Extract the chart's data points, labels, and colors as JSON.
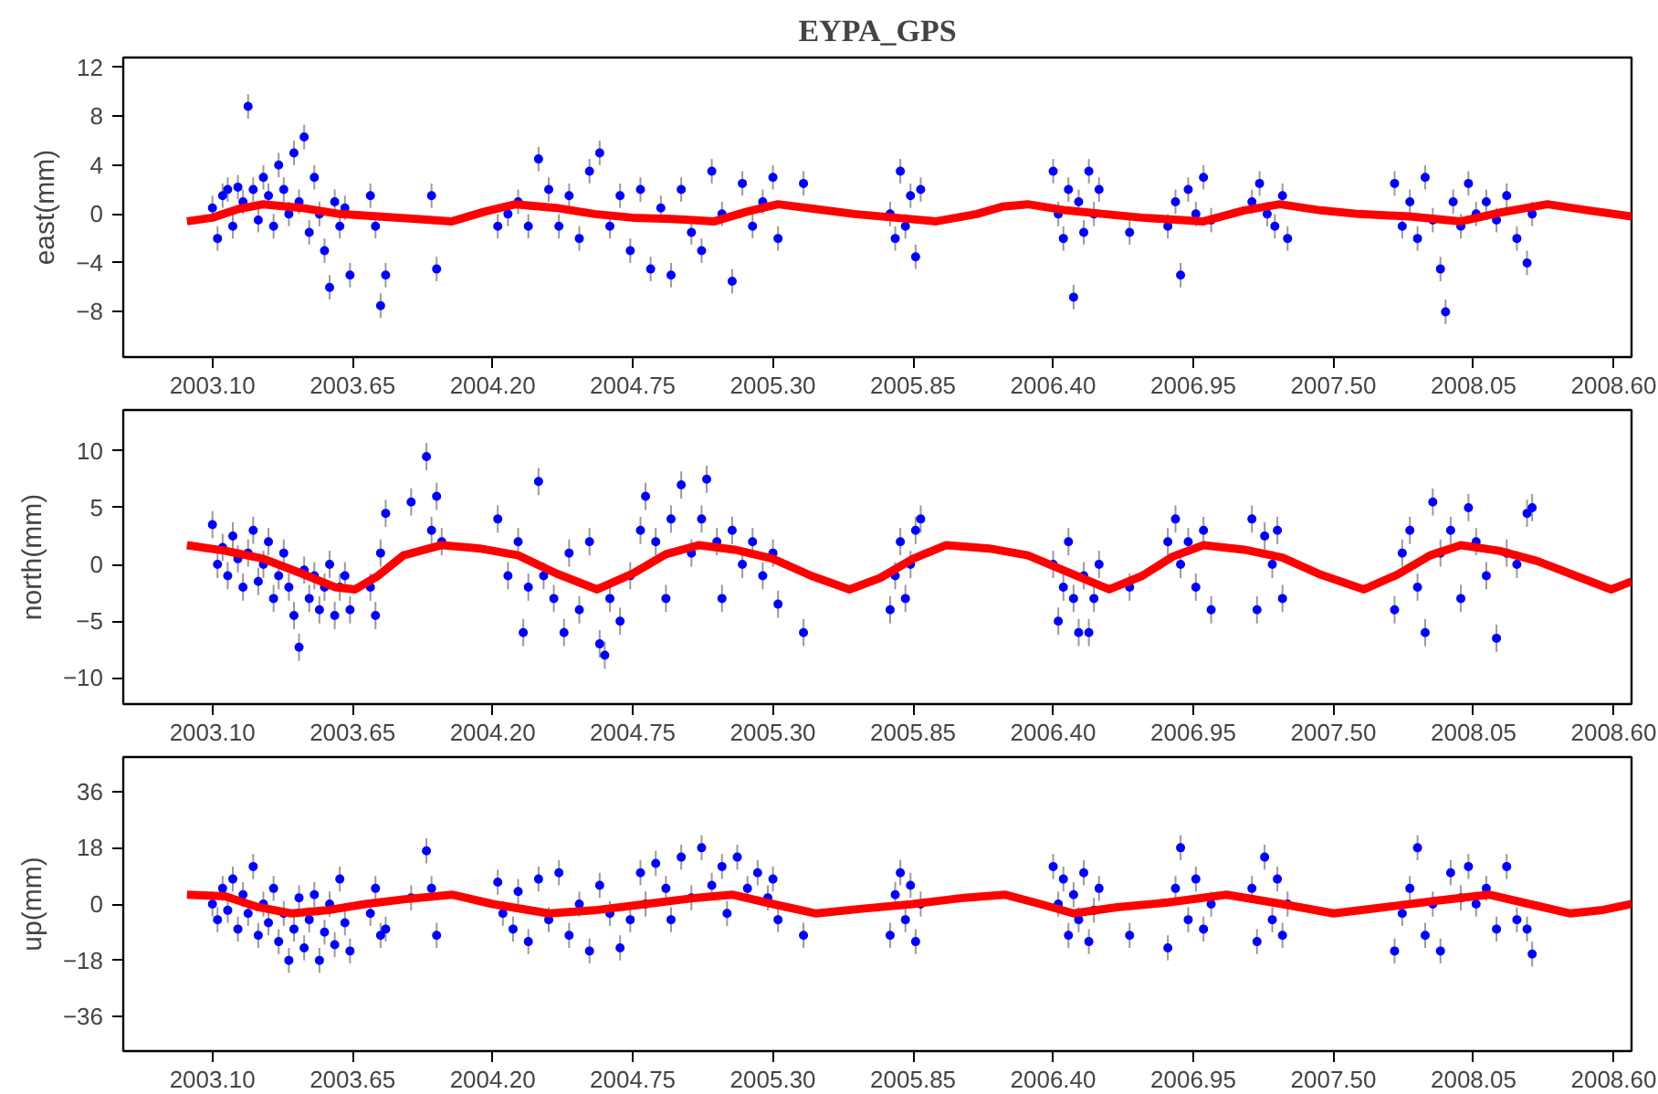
{
  "chart_data": [
    {
      "type": "scatter",
      "title": "EYPA_GPS",
      "ylabel": "east(mm)",
      "grid": false,
      "xlim": [
        2002.75,
        2008.67
      ],
      "ylim": [
        -11.7,
        12.8
      ],
      "yticks": [
        -8,
        -4,
        0,
        4,
        8,
        12
      ],
      "xticks": [
        {
          "value": 2003.1,
          "label": "2003.10"
        },
        {
          "value": 2003.65,
          "label": "2003.65"
        },
        {
          "value": 2004.2,
          "label": "2004.20"
        },
        {
          "value": 2004.75,
          "label": "2004.75"
        },
        {
          "value": 2005.3,
          "label": "2005.30"
        },
        {
          "value": 2005.85,
          "label": "2005.85"
        },
        {
          "value": 2006.4,
          "label": "2006.40"
        },
        {
          "value": 2006.95,
          "label": "2006.95"
        },
        {
          "value": 2007.5,
          "label": "2007.50"
        },
        {
          "value": 2008.05,
          "label": "2008.05"
        },
        {
          "value": 2008.6,
          "label": "2008.60"
        }
      ],
      "series": [
        {
          "color": "#0000ff",
          "marker": "circle",
          "x": [
            2003.1,
            2003.12,
            2003.14,
            2003.16,
            2003.18,
            2003.2,
            2003.22,
            2003.24,
            2003.26,
            2003.28,
            2003.3,
            2003.32,
            2003.34,
            2003.36,
            2003.38,
            2003.4,
            2003.42,
            2003.44,
            2003.46,
            2003.48,
            2003.5,
            2003.52,
            2003.54,
            2003.56,
            2003.58,
            2003.6,
            2003.62,
            2003.64,
            2003.72,
            2003.74,
            2003.76,
            2003.78,
            2003.96,
            2003.98,
            2004.22,
            2004.26,
            2004.3,
            2004.34,
            2004.38,
            2004.42,
            2004.46,
            2004.5,
            2004.54,
            2004.58,
            2004.62,
            2004.66,
            2004.7,
            2004.74,
            2004.78,
            2004.82,
            2004.86,
            2004.9,
            2004.94,
            2004.98,
            2005.02,
            2005.06,
            2005.1,
            2005.14,
            2005.18,
            2005.22,
            2005.26,
            2005.3,
            2005.32,
            2005.42,
            2005.76,
            2005.78,
            2005.8,
            2005.82,
            2005.84,
            2005.86,
            2005.88,
            2006.4,
            2006.42,
            2006.44,
            2006.46,
            2006.48,
            2006.5,
            2006.52,
            2006.54,
            2006.56,
            2006.58,
            2006.7,
            2006.85,
            2006.88,
            2006.9,
            2006.93,
            2006.96,
            2006.99,
            2007.02,
            2007.18,
            2007.21,
            2007.24,
            2007.27,
            2007.3,
            2007.32,
            2007.74,
            2007.77,
            2007.8,
            2007.83,
            2007.86,
            2007.89,
            2007.92,
            2007.94,
            2007.97,
            2008.0,
            2008.03,
            2008.06,
            2008.1,
            2008.14,
            2008.18,
            2008.22,
            2008.26,
            2008.28
          ],
          "values": [
            0.5,
            -2,
            1.5,
            2,
            -1,
            2.2,
            1,
            8.8,
            2,
            -0.5,
            3,
            1.5,
            -1,
            4,
            2,
            0,
            5,
            1,
            6.3,
            -1.5,
            3,
            0,
            -3,
            -6,
            1,
            -1,
            0.5,
            -5,
            1.5,
            -1,
            -7.5,
            -5,
            1.5,
            -4.5,
            -1,
            0,
            1,
            -1,
            4.5,
            2,
            -1,
            1.5,
            -2,
            3.5,
            5,
            -1,
            1.5,
            -3,
            2,
            -4.5,
            0.5,
            -5,
            2,
            -1.5,
            -3,
            3.5,
            0,
            -5.5,
            2.5,
            -1,
            1,
            3,
            -2,
            2.5,
            0,
            -2,
            3.5,
            -1,
            1.5,
            -3.5,
            2,
            3.5,
            0,
            -2,
            2,
            -6.8,
            1,
            -1.5,
            3.5,
            0,
            2,
            -1.5,
            -1,
            1,
            -5,
            2,
            0,
            3,
            -0.5,
            1,
            2.5,
            0,
            -1,
            1.5,
            -2,
            2.5,
            -1,
            1,
            -2,
            3,
            -0.5,
            -4.5,
            -8,
            1,
            -1,
            2.5,
            0,
            1,
            -0.5,
            1.5,
            -2,
            -4,
            0
          ],
          "errors": [
            1,
            1,
            1,
            1,
            1,
            1,
            1,
            1,
            1,
            1,
            1,
            1,
            1,
            1,
            1,
            1,
            1,
            1,
            1,
            1,
            1,
            1,
            1,
            1,
            1,
            1,
            1,
            1,
            1,
            1,
            1,
            1,
            1,
            1,
            1,
            1,
            1,
            1,
            1,
            1,
            1,
            1,
            1,
            1,
            1,
            1,
            1,
            1,
            1,
            1,
            1,
            1,
            1,
            1,
            1,
            1,
            1,
            1,
            1,
            1,
            1,
            1,
            1,
            1,
            1,
            1,
            1,
            1,
            1,
            1,
            1,
            1,
            1,
            1,
            1,
            1,
            1,
            1,
            1,
            1,
            1,
            1,
            1,
            1,
            1,
            1,
            1,
            1,
            1,
            1,
            1,
            1,
            1,
            1,
            1,
            1,
            1,
            1,
            1,
            1,
            1,
            1,
            1,
            1,
            1,
            1,
            1,
            1,
            1,
            1,
            1,
            1,
            1
          ]
        },
        {
          "type": "line",
          "color": "#ff0000",
          "x": [
            2003.0,
            2003.1,
            2003.2,
            2003.3,
            2003.45,
            2003.6,
            2003.75,
            2003.9,
            2004.04,
            2004.17,
            2004.29,
            2004.45,
            2004.6,
            2004.75,
            2004.9,
            2005.07,
            2005.2,
            2005.32,
            2005.47,
            2005.62,
            2005.78,
            2005.94,
            2006.1,
            2006.2,
            2006.3,
            2006.45,
            2006.6,
            2006.75,
            2006.99,
            2007.15,
            2007.29,
            2007.45,
            2007.6,
            2007.8,
            2008.0,
            2008.15,
            2008.34,
            2008.5,
            2008.67
          ],
          "values": [
            -0.6,
            -0.3,
            0.4,
            0.8,
            0.5,
            0.0,
            -0.2,
            -0.4,
            -0.6,
            0.2,
            0.8,
            0.5,
            0.0,
            -0.3,
            -0.4,
            -0.6,
            0.2,
            0.8,
            0.4,
            0.0,
            -0.3,
            -0.6,
            0.0,
            0.6,
            0.8,
            0.3,
            0.0,
            -0.3,
            -0.6,
            0.3,
            0.8,
            0.3,
            0.0,
            -0.2,
            -0.6,
            0.1,
            0.8,
            0.3,
            -0.2
          ]
        }
      ]
    },
    {
      "type": "scatter",
      "ylabel": "north(mm)",
      "grid": false,
      "xlim": [
        2002.75,
        2008.67
      ],
      "ylim": [
        -12.3,
        13.6
      ],
      "yticks": [
        -10,
        -5,
        0,
        5,
        10
      ],
      "xticks": [
        {
          "value": 2003.1,
          "label": "2003.10"
        },
        {
          "value": 2003.65,
          "label": "2003.65"
        },
        {
          "value": 2004.2,
          "label": "2004.20"
        },
        {
          "value": 2004.75,
          "label": "2004.75"
        },
        {
          "value": 2005.3,
          "label": "2005.30"
        },
        {
          "value": 2005.85,
          "label": "2005.85"
        },
        {
          "value": 2006.4,
          "label": "2006.40"
        },
        {
          "value": 2006.95,
          "label": "2006.95"
        },
        {
          "value": 2007.5,
          "label": "2007.50"
        },
        {
          "value": 2008.05,
          "label": "2008.05"
        },
        {
          "value": 2008.6,
          "label": "2008.60"
        }
      ],
      "series": [
        {
          "color": "#0000ff",
          "marker": "circle",
          "x": [
            2003.1,
            2003.12,
            2003.14,
            2003.16,
            2003.18,
            2003.2,
            2003.22,
            2003.24,
            2003.26,
            2003.28,
            2003.3,
            2003.32,
            2003.34,
            2003.36,
            2003.38,
            2003.4,
            2003.42,
            2003.44,
            2003.46,
            2003.48,
            2003.5,
            2003.52,
            2003.54,
            2003.56,
            2003.58,
            2003.6,
            2003.62,
            2003.64,
            2003.72,
            2003.74,
            2003.76,
            2003.78,
            2003.88,
            2003.94,
            2003.96,
            2003.98,
            2004.0,
            2004.22,
            2004.26,
            2004.3,
            2004.32,
            2004.34,
            2004.38,
            2004.4,
            2004.44,
            2004.48,
            2004.5,
            2004.54,
            2004.58,
            2004.62,
            2004.64,
            2004.66,
            2004.7,
            2004.74,
            2004.78,
            2004.8,
            2004.84,
            2004.88,
            2004.9,
            2004.94,
            2004.98,
            2005.02,
            2005.04,
            2005.08,
            2005.1,
            2005.14,
            2005.18,
            2005.22,
            2005.26,
            2005.3,
            2005.32,
            2005.42,
            2005.76,
            2005.78,
            2005.8,
            2005.82,
            2005.84,
            2005.86,
            2005.88,
            2006.4,
            2006.42,
            2006.44,
            2006.46,
            2006.48,
            2006.5,
            2006.52,
            2006.54,
            2006.56,
            2006.58,
            2006.7,
            2006.85,
            2006.88,
            2006.9,
            2006.93,
            2006.96,
            2006.99,
            2007.02,
            2007.18,
            2007.2,
            2007.23,
            2007.26,
            2007.28,
            2007.3,
            2007.74,
            2007.77,
            2007.8,
            2007.83,
            2007.86,
            2007.89,
            2007.92,
            2007.96,
            2008.0,
            2008.03,
            2008.06,
            2008.1,
            2008.14,
            2008.18,
            2008.22,
            2008.26,
            2008.28
          ],
          "values": [
            3.5,
            0,
            1.5,
            -1,
            2.5,
            0.5,
            -2,
            1,
            3,
            -1.5,
            0,
            2,
            -3,
            -1,
            1,
            -2,
            -4.5,
            -7.3,
            -0.5,
            -3,
            -1,
            -4,
            -2,
            0,
            -4.5,
            -2,
            -1,
            -4,
            -2,
            -4.5,
            1,
            4.5,
            5.5,
            9.5,
            3,
            6,
            2,
            4,
            -1,
            2,
            -6,
            -2,
            7.3,
            -1,
            -3,
            -6,
            1,
            -4,
            2,
            -7,
            -8,
            -3,
            -5,
            -1,
            3,
            6,
            2,
            -3,
            4,
            7,
            1,
            4,
            7.5,
            2,
            -3,
            3,
            0,
            2,
            -1,
            1,
            -3.5,
            -6,
            -4,
            -1,
            2,
            -3,
            0,
            3,
            4,
            0,
            -5,
            -2,
            2,
            -3,
            -6,
            -1,
            -6,
            -3,
            0,
            -2,
            2,
            4,
            0,
            2,
            -2,
            3,
            -4,
            4,
            -4,
            2.5,
            0,
            3,
            -3,
            -4,
            1,
            3,
            -2,
            -6,
            5.5,
            1,
            3,
            -3,
            5,
            2,
            -1,
            -6.5,
            1,
            0,
            4.5,
            5
          ],
          "errors": [
            1.2,
            1.2,
            1.2,
            1.2,
            1.2,
            1.2,
            1.2,
            1.2,
            1.2,
            1.2,
            1.2,
            1.2,
            1.2,
            1.2,
            1.2,
            1.2,
            1.2,
            1.2,
            1.2,
            1.2,
            1.2,
            1.2,
            1.2,
            1.2,
            1.2,
            1.2,
            1.2,
            1.2,
            1.2,
            1.2,
            1.2,
            1.2,
            1.2,
            1.2,
            1.2,
            1.2,
            1.2,
            1.2,
            1.2,
            1.2,
            1.2,
            1.2,
            1.2,
            1.2,
            1.2,
            1.2,
            1.2,
            1.2,
            1.2,
            1.2,
            1.2,
            1.2,
            1.2,
            1.2,
            1.2,
            1.2,
            1.2,
            1.2,
            1.2,
            1.2,
            1.2,
            1.2,
            1.2,
            1.2,
            1.2,
            1.2,
            1.2,
            1.2,
            1.2,
            1.2,
            1.2,
            1.2,
            1.2,
            1.2,
            1.2,
            1.2,
            1.2,
            1.2,
            1.2,
            1.2,
            1.2,
            1.2,
            1.2,
            1.2,
            1.2,
            1.2,
            1.2,
            1.2,
            1.2,
            1.2,
            1.2,
            1.2,
            1.2,
            1.2,
            1.2,
            1.2,
            1.2,
            1.2,
            1.2,
            1.2,
            1.2,
            1.2,
            1.2,
            1.2,
            1.2,
            1.2,
            1.2,
            1.2,
            1.2,
            1.2,
            1.2,
            1.2,
            1.2,
            1.2,
            1.2,
            1.2,
            1.2,
            1.2,
            1.2,
            1.2
          ]
        },
        {
          "type": "line",
          "color": "#ff0000",
          "x": [
            2003.0,
            2003.15,
            2003.3,
            2003.45,
            2003.58,
            2003.66,
            2003.75,
            2003.85,
            2004.0,
            2004.15,
            2004.3,
            2004.45,
            2004.61,
            2004.75,
            2004.88,
            2005.01,
            2005.15,
            2005.3,
            2005.45,
            2005.6,
            2005.72,
            2005.85,
            2005.98,
            2006.15,
            2006.3,
            2006.45,
            2006.62,
            2006.75,
            2006.87,
            2006.99,
            2007.15,
            2007.3,
            2007.45,
            2007.62,
            2007.75,
            2007.88,
            2008.0,
            2008.15,
            2008.3,
            2008.45,
            2008.59,
            2008.67
          ],
          "values": [
            1.7,
            1.2,
            0.5,
            -0.8,
            -2.0,
            -2.2,
            -1.0,
            0.8,
            1.7,
            1.4,
            0.8,
            -0.8,
            -2.2,
            -0.8,
            0.9,
            1.7,
            1.3,
            0.5,
            -1.0,
            -2.2,
            -1.2,
            0.5,
            1.7,
            1.4,
            0.8,
            -0.6,
            -2.2,
            -1.0,
            0.7,
            1.7,
            1.3,
            0.6,
            -0.9,
            -2.2,
            -0.9,
            0.8,
            1.7,
            1.2,
            0.3,
            -1.0,
            -2.2,
            -1.5
          ]
        }
      ]
    },
    {
      "type": "scatter",
      "ylabel": "up(mm)",
      "grid": false,
      "xlim": [
        2002.75,
        2008.67
      ],
      "ylim": [
        -47,
        47
      ],
      "yticks": [
        -36,
        -18,
        0,
        18,
        36
      ],
      "xticks": [
        {
          "value": 2003.1,
          "label": "2003.10"
        },
        {
          "value": 2003.65,
          "label": "2003.65"
        },
        {
          "value": 2004.2,
          "label": "2004.20"
        },
        {
          "value": 2004.75,
          "label": "2004.75"
        },
        {
          "value": 2005.3,
          "label": "2005.30"
        },
        {
          "value": 2005.85,
          "label": "2005.85"
        },
        {
          "value": 2006.4,
          "label": "2006.40"
        },
        {
          "value": 2006.95,
          "label": "2006.95"
        },
        {
          "value": 2007.5,
          "label": "2007.50"
        },
        {
          "value": 2008.05,
          "label": "2008.05"
        },
        {
          "value": 2008.6,
          "label": "2008.60"
        }
      ],
      "series": [
        {
          "color": "#0000ff",
          "marker": "circle",
          "x": [
            2003.1,
            2003.12,
            2003.14,
            2003.16,
            2003.18,
            2003.2,
            2003.22,
            2003.24,
            2003.26,
            2003.28,
            2003.3,
            2003.32,
            2003.34,
            2003.36,
            2003.38,
            2003.4,
            2003.42,
            2003.44,
            2003.46,
            2003.48,
            2003.5,
            2003.52,
            2003.54,
            2003.56,
            2003.58,
            2003.6,
            2003.62,
            2003.64,
            2003.72,
            2003.74,
            2003.76,
            2003.78,
            2003.88,
            2003.94,
            2003.96,
            2003.98,
            2004.22,
            2004.24,
            2004.28,
            2004.3,
            2004.34,
            2004.38,
            2004.42,
            2004.46,
            2004.5,
            2004.54,
            2004.58,
            2004.62,
            2004.66,
            2004.7,
            2004.74,
            2004.78,
            2004.8,
            2004.84,
            2004.88,
            2004.9,
            2004.94,
            2004.98,
            2005.02,
            2005.06,
            2005.1,
            2005.12,
            2005.16,
            2005.2,
            2005.24,
            2005.28,
            2005.3,
            2005.32,
            2005.42,
            2005.76,
            2005.78,
            2005.8,
            2005.82,
            2005.84,
            2005.86,
            2005.88,
            2006.4,
            2006.42,
            2006.44,
            2006.46,
            2006.48,
            2006.5,
            2006.52,
            2006.54,
            2006.56,
            2006.58,
            2006.7,
            2006.85,
            2006.88,
            2006.9,
            2006.93,
            2006.96,
            2006.99,
            2007.02,
            2007.18,
            2007.2,
            2007.23,
            2007.26,
            2007.28,
            2007.3,
            2007.32,
            2007.74,
            2007.77,
            2007.8,
            2007.83,
            2007.86,
            2007.89,
            2007.92,
            2007.96,
            2008.0,
            2008.03,
            2008.06,
            2008.1,
            2008.14,
            2008.18,
            2008.22,
            2008.26,
            2008.28
          ],
          "values": [
            0,
            -5,
            5,
            -2,
            8,
            -8,
            3,
            -3,
            12,
            -10,
            0,
            -6,
            5,
            -12,
            -3,
            -18,
            -8,
            2,
            -14,
            -5,
            3,
            -18,
            -9,
            0,
            -13,
            8,
            -6,
            -15,
            -3,
            5,
            -10,
            -8,
            2,
            17,
            5,
            -10,
            7,
            -3,
            -8,
            4,
            -12,
            8,
            -5,
            10,
            -10,
            0,
            -15,
            6,
            -3,
            -14,
            -5,
            10,
            0,
            13,
            5,
            -5,
            15,
            2,
            18,
            6,
            12,
            -3,
            15,
            5,
            10,
            2,
            8,
            -5,
            -10,
            -10,
            3,
            10,
            -5,
            6,
            -12,
            0,
            12,
            0,
            8,
            -10,
            3,
            -5,
            10,
            -12,
            -2,
            5,
            -10,
            -14,
            5,
            18,
            -5,
            8,
            -8,
            0,
            5,
            -12,
            15,
            -5,
            8,
            -10,
            0,
            -15,
            -3,
            5,
            18,
            -10,
            0,
            -15,
            10,
            2,
            12,
            0,
            5,
            -8,
            12,
            -5,
            -8,
            -16
          ],
          "errors": [
            4,
            4,
            4,
            4,
            4,
            4,
            4,
            4,
            4,
            4,
            4,
            4,
            4,
            4,
            4,
            4,
            4,
            4,
            4,
            4,
            4,
            4,
            4,
            4,
            4,
            4,
            4,
            4,
            4,
            4,
            4,
            4,
            4,
            4,
            4,
            4,
            4,
            4,
            4,
            4,
            4,
            4,
            4,
            4,
            4,
            4,
            4,
            4,
            4,
            4,
            4,
            4,
            4,
            4,
            4,
            4,
            4,
            4,
            4,
            4,
            4,
            4,
            4,
            4,
            4,
            4,
            4,
            4,
            4,
            4,
            4,
            4,
            4,
            4,
            4,
            4,
            4,
            4,
            4,
            4,
            4,
            4,
            4,
            4,
            4,
            4,
            4,
            4,
            4,
            4,
            4,
            4,
            4,
            4,
            4,
            4,
            4,
            4,
            4,
            4,
            4,
            4,
            4,
            4,
            4,
            4,
            4,
            4,
            4,
            4,
            4,
            4,
            4,
            4,
            4,
            4,
            4,
            4
          ]
        },
        {
          "type": "line",
          "color": "#ff0000",
          "x": [
            2003.0,
            2003.15,
            2003.28,
            2003.41,
            2003.55,
            2003.7,
            2003.85,
            2004.04,
            2004.2,
            2004.42,
            2004.6,
            2004.8,
            2005.0,
            2005.14,
            2005.3,
            2005.47,
            2005.65,
            2005.85,
            2006.05,
            2006.21,
            2006.35,
            2006.48,
            2006.65,
            2006.85,
            2007.08,
            2007.3,
            2007.5,
            2007.7,
            2007.9,
            2008.11,
            2008.27,
            2008.43,
            2008.55,
            2008.67
          ],
          "values": [
            3,
            2.5,
            -1,
            -3,
            -2,
            0,
            1.5,
            3,
            0,
            -3,
            -2,
            0,
            2,
            3,
            0,
            -3,
            -1.5,
            0,
            2,
            3,
            0,
            -3,
            -1,
            0.5,
            3,
            0,
            -3,
            -1,
            1,
            3,
            0,
            -3,
            -2,
            0
          ]
        }
      ]
    }
  ]
}
